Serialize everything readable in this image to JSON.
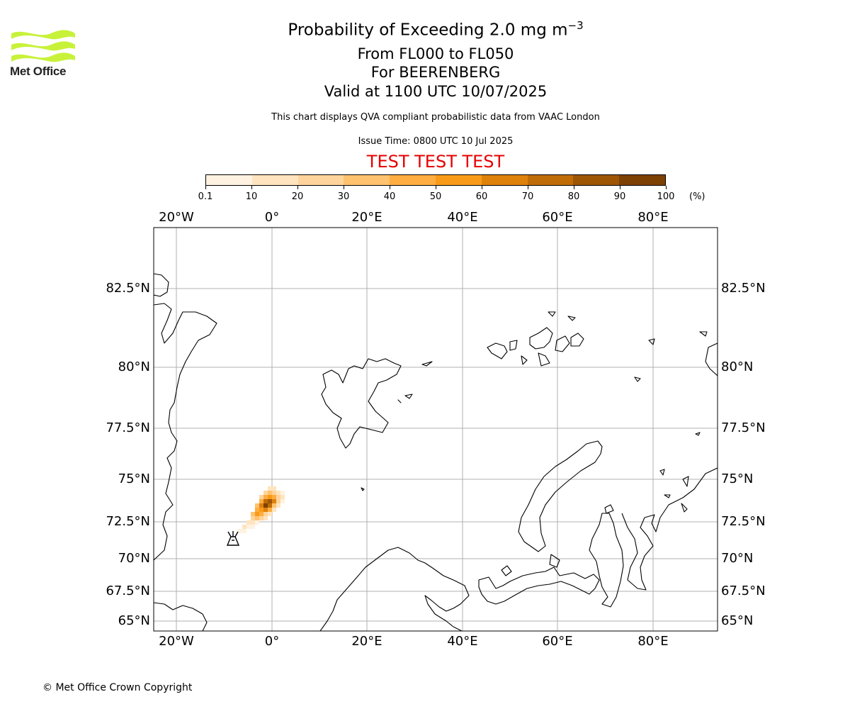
{
  "header": {
    "logo_text": "Met Office",
    "title_main": "Probability of Exceeding 2.0 mg m",
    "title_sup": "−3",
    "line_levels": "From FL000 to FL050",
    "line_volcano": "For BEERENBERG",
    "line_valid": "Valid at 1100 UTC 10/07/2025",
    "notice": "This chart displays QVA compliant probabilistic data from VAAC London",
    "issue_time": "Issue Time: 0800 UTC 10 Jul 2025",
    "test_banner": "TEST TEST TEST"
  },
  "colorbar": {
    "ticks": [
      "0.1",
      "10",
      "20",
      "30",
      "40",
      "50",
      "60",
      "70",
      "80",
      "90",
      "100"
    ],
    "unit": "(%)",
    "colors": [
      "#fff2e0",
      "#ffe4bf",
      "#ffd49c",
      "#ffc26e",
      "#ffad40",
      "#f99b19",
      "#de820c",
      "#c06c06",
      "#9e5604",
      "#7d4103"
    ]
  },
  "map": {
    "lon_labels": [
      "20°W",
      "0°",
      "20°E",
      "40°E",
      "60°E",
      "80°E"
    ],
    "lat_labels": [
      "82.5°N",
      "80°N",
      "77.5°N",
      "75°N",
      "72.5°N",
      "70°N",
      "67.5°N",
      "65°N"
    ],
    "volcano_marker": "volcano-icon",
    "plume_levels_percent": [
      10,
      20,
      30,
      40,
      50,
      60,
      70,
      80,
      90
    ]
  },
  "footer": {
    "copyright": "© Met Office Crown Copyright"
  }
}
